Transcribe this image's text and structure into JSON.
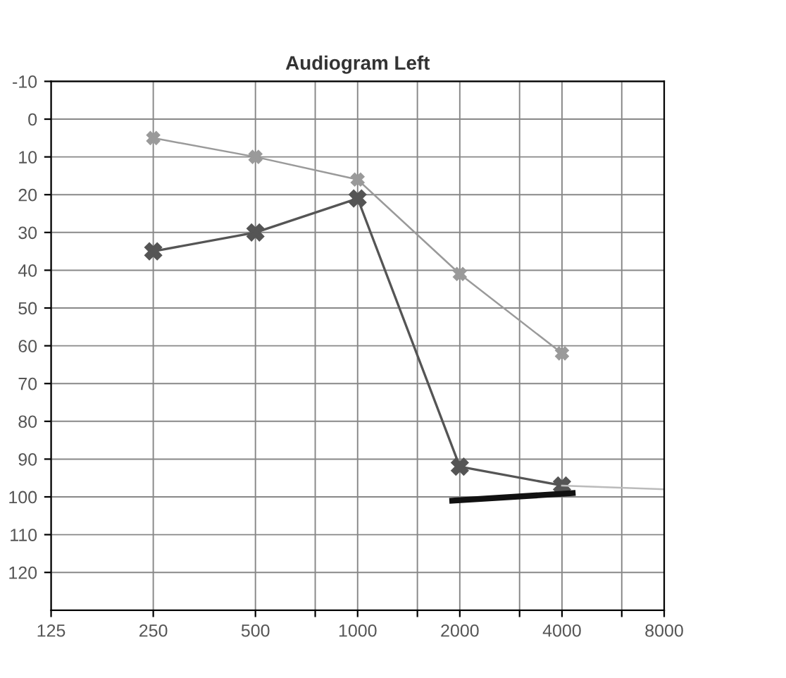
{
  "chart_data": {
    "type": "line",
    "title": "Audiogram Left",
    "log": "x",
    "grid": true,
    "xlim": [
      125,
      8000
    ],
    "xticks": [
      125,
      250,
      500,
      {
        "value": 750,
        "label": null
      },
      1000,
      {
        "value": 1500,
        "label": null
      },
      2000,
      {
        "value": 3000,
        "label": null
      },
      4000,
      {
        "value": 6000,
        "label": null
      },
      8000
    ],
    "ylim": [
      130,
      -10
    ],
    "yticks": [
      -10,
      0,
      10,
      20,
      30,
      40,
      50,
      60,
      70,
      80,
      90,
      100,
      110,
      120
    ],
    "series": [
      {
        "color": "#9a9a9a",
        "marker": "cross",
        "x": [
          250,
          500,
          1000,
          2000,
          4000
        ],
        "values": [
          5,
          10,
          16,
          41,
          62
        ]
      },
      {
        "color": "#555555",
        "marker": "cross",
        "x": [
          250,
          500,
          1000,
          2000,
          4000
        ],
        "values": [
          35,
          30,
          21,
          92,
          97
        ]
      },
      {
        "color": "#bbbbbb",
        "marker": "none",
        "x": [
          4000,
          8000
        ],
        "values": [
          97,
          98
        ]
      },
      {
        "color": "#111111",
        "marker": "none",
        "x": [
          1900,
          4300
        ],
        "values": [
          101,
          99
        ]
      }
    ]
  }
}
